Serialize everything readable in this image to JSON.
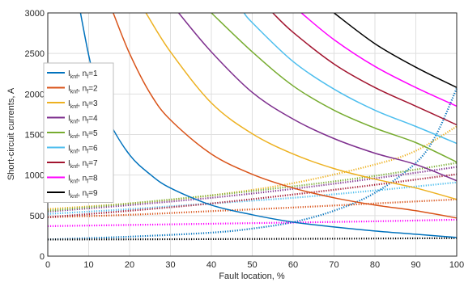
{
  "chart_data": {
    "type": "line",
    "title": "",
    "xlabel": "Fault location, %",
    "ylabel": "Short-circuit currents, A",
    "xlim": [
      0,
      100
    ],
    "ylim": [
      0,
      3000
    ],
    "xticks": [
      0,
      10,
      20,
      30,
      40,
      50,
      60,
      70,
      80,
      90,
      100
    ],
    "yticks": [
      0,
      500,
      1000,
      1500,
      2000,
      2500,
      3000
    ],
    "grid": true,
    "legend_position": "left",
    "legend_main": "I",
    "legend_sub": "knf",
    "legend_sep": ", n",
    "legend_sub2": "f",
    "series": [
      {
        "name": "nf=1",
        "nf": "1",
        "color": "#0072BD",
        "x": [
          8,
          10,
          12,
          15,
          20,
          25,
          30,
          40,
          50,
          60,
          70,
          80,
          90,
          100
        ],
        "y": [
          3000,
          2480,
          2070,
          1660,
          1250,
          1010,
          840,
          630,
          510,
          420,
          360,
          310,
          270,
          230
        ]
      },
      {
        "name": "nf=2",
        "nf": "2",
        "color": "#D95319",
        "x": [
          16,
          20,
          25,
          30,
          40,
          50,
          60,
          70,
          80,
          90,
          100
        ],
        "y": [
          3000,
          2500,
          2010,
          1680,
          1260,
          1010,
          840,
          720,
          630,
          560,
          470
        ]
      },
      {
        "name": "nf=3",
        "nf": "3",
        "color": "#EDB120",
        "x": [
          24,
          30,
          40,
          50,
          60,
          70,
          80,
          90,
          100
        ],
        "y": [
          3000,
          2520,
          1890,
          1510,
          1260,
          1080,
          950,
          840,
          700
        ]
      },
      {
        "name": "nf=4",
        "nf": "4",
        "color": "#7E2F8E",
        "x": [
          32,
          40,
          50,
          60,
          70,
          80,
          90,
          100
        ],
        "y": [
          3000,
          2520,
          2020,
          1690,
          1450,
          1270,
          1130,
          930
        ]
      },
      {
        "name": "nf=5",
        "nf": "5",
        "color": "#77AC30",
        "x": [
          40,
          50,
          60,
          70,
          80,
          90,
          100
        ],
        "y": [
          3000,
          2520,
          2100,
          1800,
          1580,
          1400,
          1160
        ]
      },
      {
        "name": "nf=6",
        "nf": "6",
        "color": "#4DBEEE",
        "x": [
          48,
          50,
          60,
          70,
          80,
          90,
          100
        ],
        "y": [
          3000,
          2880,
          2400,
          2060,
          1800,
          1600,
          1390
        ]
      },
      {
        "name": "nf=7",
        "nf": "7",
        "color": "#A2142F",
        "x": [
          55,
          60,
          70,
          80,
          90,
          100
        ],
        "y": [
          3000,
          2760,
          2370,
          2080,
          1850,
          1620
        ]
      },
      {
        "name": "nf=8",
        "nf": "8",
        "color": "#FF00FF",
        "x": [
          62,
          70,
          80,
          90,
          100
        ],
        "y": [
          3000,
          2670,
          2340,
          2080,
          1850
        ]
      },
      {
        "name": "nf=9",
        "nf": "9",
        "color": "#000000",
        "x": [
          70,
          80,
          90,
          100
        ],
        "y": [
          3000,
          2620,
          2330,
          2080
        ]
      }
    ],
    "dotted_series": [
      {
        "nf": "1",
        "color": "#0072BD",
        "x": [
          0,
          20,
          40,
          50,
          60,
          70,
          80,
          90,
          95,
          100
        ],
        "y": [
          205,
          240,
          290,
          340,
          420,
          560,
          780,
          1150,
          1500,
          2070
        ]
      },
      {
        "nf": "2",
        "color": "#D95319",
        "x": [
          0,
          20,
          40,
          60,
          80,
          100
        ],
        "y": [
          480,
          510,
          555,
          600,
          650,
          700
        ]
      },
      {
        "name": "",
        "nf": "3",
        "color": "#EDB120",
        "x": [
          0,
          20,
          40,
          60,
          80,
          90,
          100
        ],
        "y": [
          580,
          650,
          750,
          900,
          1130,
          1300,
          1600
        ]
      },
      {
        "nf": "4",
        "color": "#7E2F8E",
        "x": [
          0,
          20,
          40,
          60,
          80,
          100
        ],
        "y": [
          550,
          630,
          720,
          830,
          960,
          1100
        ]
      },
      {
        "nf": "5",
        "color": "#77AC30",
        "x": [
          0,
          20,
          40,
          60,
          80,
          100
        ],
        "y": [
          560,
          650,
          750,
          860,
          990,
          1150
        ]
      },
      {
        "nf": "6",
        "color": "#4DBEEE",
        "x": [
          0,
          20,
          40,
          60,
          80,
          100
        ],
        "y": [
          520,
          580,
          650,
          720,
          810,
          910
        ]
      },
      {
        "nf": "7",
        "color": "#A2142F",
        "x": [
          0,
          20,
          40,
          60,
          80,
          100
        ],
        "y": [
          480,
          560,
          650,
          760,
          880,
          1010
        ]
      },
      {
        "nf": "8",
        "color": "#FF00FF",
        "x": [
          0,
          20,
          40,
          60,
          80,
          100
        ],
        "y": [
          370,
          385,
          400,
          415,
          430,
          450
        ]
      },
      {
        "nf": "9",
        "color": "#000000",
        "x": [
          0,
          20,
          40,
          60,
          80,
          100
        ],
        "y": [
          205,
          207,
          210,
          213,
          217,
          222
        ]
      }
    ]
  }
}
